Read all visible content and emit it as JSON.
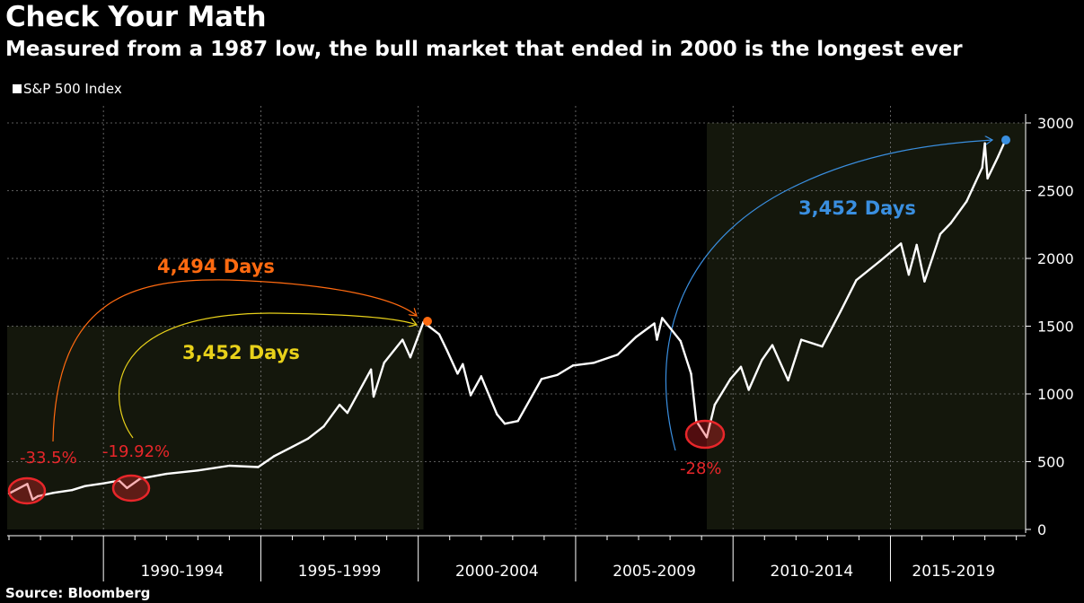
{
  "title": "Check Your Math",
  "subtitle": "Measured from a 1987 low, the bull market that ended in 2000 is the longest ever",
  "legend": {
    "series_label": "S&P 500 Index",
    "color": "#ffffff"
  },
  "source": "Source: Bloomberg",
  "colors": {
    "background": "#000000",
    "line": "#ffffff",
    "shade": "#14170c",
    "grid": "#7a7a7a",
    "orange": "#ff6a10",
    "yellow": "#e8d11a",
    "blue": "#3a8fe0",
    "red": "#e8262a"
  },
  "annotations": {
    "orange_days": "4,494 Days",
    "yellow_days": "3,452 Days",
    "blue_days": "3,452 Days",
    "drop_1987": "-33.5%",
    "drop_1990": "-19.92%",
    "drop_2009": "-28%"
  },
  "chart_data": {
    "type": "line",
    "title": "Check Your Math",
    "subtitle": "Measured from a 1987 low, the bull market that ended in 2000 is the longest ever",
    "xlabel": "",
    "ylabel": "",
    "ylim": [
      0,
      3000
    ],
    "yticks": [
      0,
      500,
      1000,
      1500,
      2000,
      2500,
      3000
    ],
    "x_tick_labels": [
      "1990-1994",
      "1995-1999",
      "2000-2004",
      "2005-2009",
      "2010-2014",
      "2015-2019"
    ],
    "x_range": [
      "1987-01",
      "2018-09"
    ],
    "grid": true,
    "legend_position": "top-left",
    "y_axis_side": "right",
    "shaded_periods": [
      {
        "start": "1987-01",
        "end": "2000-03",
        "top": 1500
      },
      {
        "start": "2009-03",
        "end": "2018-09",
        "top": 3000
      }
    ],
    "series": [
      {
        "name": "S&P 500 Index",
        "x": [
          "1987-01",
          "1987-08",
          "1987-10",
          "1987-12",
          "1988-06",
          "1989-01",
          "1989-06",
          "1990-01",
          "1990-07",
          "1990-10",
          "1991-03",
          "1992-01",
          "1993-01",
          "1994-01",
          "1994-12",
          "1995-06",
          "1996-01",
          "1996-07",
          "1997-01",
          "1997-07",
          "1997-10",
          "1998-07",
          "1998-08",
          "1998-12",
          "1999-07",
          "1999-10",
          "2000-03",
          "2000-09",
          "2000-12",
          "2001-04",
          "2001-06",
          "2001-09",
          "2002-01",
          "2002-07",
          "2002-10",
          "2003-03",
          "2003-12",
          "2004-06",
          "2004-12",
          "2005-08",
          "2006-05",
          "2006-12",
          "2007-07",
          "2007-08",
          "2007-10",
          "2008-05",
          "2008-09",
          "2008-11",
          "2009-03",
          "2009-06",
          "2009-12",
          "2010-04",
          "2010-07",
          "2010-12",
          "2011-04",
          "2011-10",
          "2012-03",
          "2012-11",
          "2013-06",
          "2013-12",
          "2014-09",
          "2015-05",
          "2015-08",
          "2015-11",
          "2016-02",
          "2016-08",
          "2016-12",
          "2017-06",
          "2017-12",
          "2018-01",
          "2018-02",
          "2018-06",
          "2018-09"
        ],
        "values": [
          265,
          336,
          220,
          245,
          270,
          290,
          320,
          340,
          360,
          305,
          375,
          410,
          435,
          470,
          460,
          540,
          610,
          670,
          760,
          920,
          860,
          1180,
          980,
          1230,
          1400,
          1270,
          1530,
          1440,
          1320,
          1150,
          1220,
          990,
          1130,
          850,
          780,
          800,
          1110,
          1140,
          1210,
          1230,
          1290,
          1420,
          1520,
          1400,
          1560,
          1390,
          1150,
          800,
          680,
          920,
          1110,
          1200,
          1030,
          1250,
          1360,
          1100,
          1400,
          1350,
          1610,
          1840,
          1980,
          2110,
          1880,
          2100,
          1830,
          2180,
          2260,
          2420,
          2670,
          2850,
          2590,
          2750,
          2880
        ]
      }
    ]
  }
}
